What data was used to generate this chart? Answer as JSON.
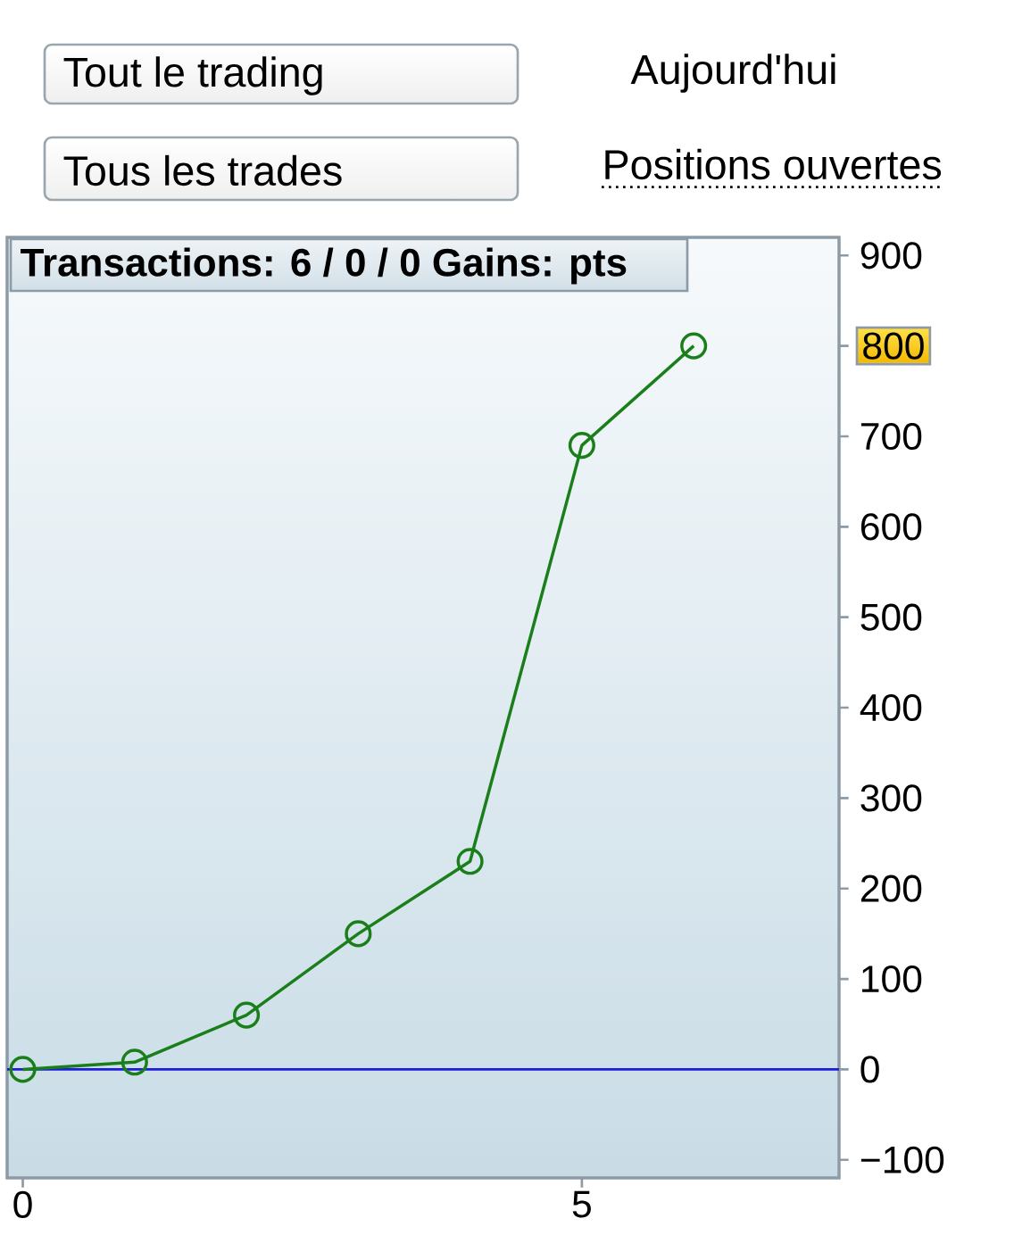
{
  "chart_data": {
    "type": "line",
    "title": "Transactions: 6 / 0 / 0   Gains: pts",
    "x": [
      0,
      1,
      2,
      3,
      4,
      5,
      6
    ],
    "values": [
      0,
      8,
      60,
      150,
      230,
      690,
      800
    ],
    "color": "#1a7f1a",
    "marker": "circle",
    "line_style": "solid",
    "xlim": [
      -0.14,
      7.3
    ],
    "ylim": [
      -120,
      920
    ],
    "xticks": [
      0,
      5
    ],
    "yticks": [
      {
        "value": -100,
        "label": "−100"
      },
      0,
      100,
      200,
      300,
      400,
      500,
      600,
      700,
      {
        "value": 800,
        "label": null
      },
      900
    ],
    "ref_lines": [
      {
        "axis": "y",
        "value": 0,
        "color": "#1c1cdc"
      }
    ],
    "annotations": [
      "800",
      "Tout le trading",
      "Aujourd'hui",
      "Tous les trades",
      "Positions ouvertes"
    ]
  }
}
